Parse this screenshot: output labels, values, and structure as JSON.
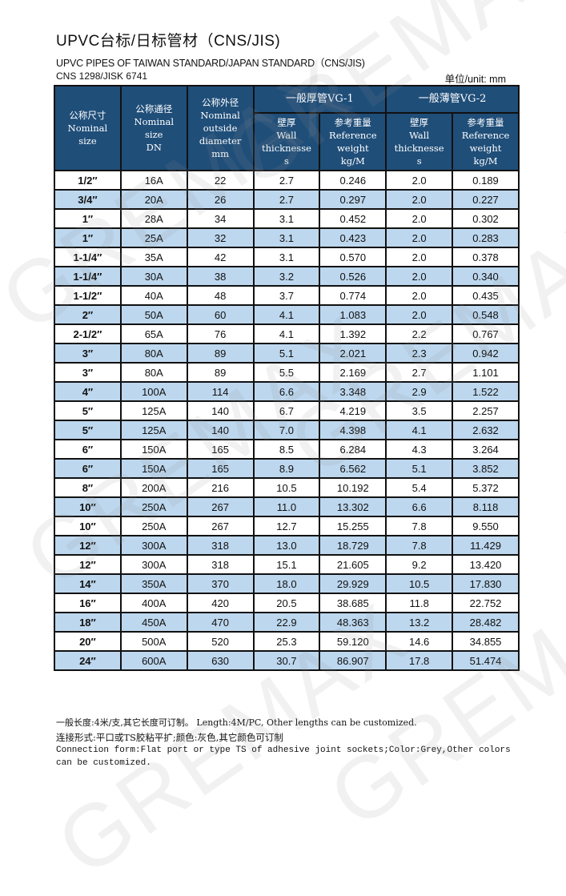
{
  "header": {
    "title": "UPVC台标/日标管材（CNS/JIS)",
    "subtitle": "UPVC PIPES OF TAIWAN STANDARD/JAPAN STANDARD（CNS/JIS)",
    "standard": "CNS 1298/JISK 6741",
    "unit": "单位/unit: mm"
  },
  "watermark": "GREMAX",
  "table": {
    "columns": {
      "nominal_size": "公称尺寸\nNominal\nsize",
      "nominal_dn": "公称通径\nNominal\nsize\nDN",
      "outside_diameter": "公称外径\nNominal\noutside\ndiameter\nmm",
      "vg1": "一般厚管VG-1",
      "vg2": "一般薄管VG-2",
      "wall": "壁厚\nWall\nthicknesse\ns",
      "weight": "参考重量\nReference\nweight\nkg/M"
    },
    "rows": [
      [
        "1/2″",
        "16A",
        "22",
        "2.7",
        "0.246",
        "2.0",
        "0.189"
      ],
      [
        "3/4″",
        "20A",
        "26",
        "2.7",
        "0.297",
        "2.0",
        "0.227"
      ],
      [
        "1″",
        "28A",
        "34",
        "3.1",
        "0.452",
        "2.0",
        "0.302"
      ],
      [
        "1″",
        "25A",
        "32",
        "3.1",
        "0.423",
        "2.0",
        "0.283"
      ],
      [
        "1-1/4″",
        "35A",
        "42",
        "3.1",
        "0.570",
        "2.0",
        "0.378"
      ],
      [
        "1-1/4″",
        "30A",
        "38",
        "3.2",
        "0.526",
        "2.0",
        "0.340"
      ],
      [
        "1-1/2″",
        "40A",
        "48",
        "3.7",
        "0.774",
        "2.0",
        "0.435"
      ],
      [
        "2″",
        "50A",
        "60",
        "4.1",
        "1.083",
        "2.0",
        "0.548"
      ],
      [
        "2-1/2″",
        "65A",
        "76",
        "4.1",
        "1.392",
        "2.2",
        "0.767"
      ],
      [
        "3″",
        "80A",
        "89",
        "5.1",
        "2.021",
        "2.3",
        "0.942"
      ],
      [
        "3″",
        "80A",
        "89",
        "5.5",
        "2.169",
        "2.7",
        "1.101"
      ],
      [
        "4″",
        "100A",
        "114",
        "6.6",
        "3.348",
        "2.9",
        "1.522"
      ],
      [
        "5″",
        "125A",
        "140",
        "6.7",
        "4.219",
        "3.5",
        "2.257"
      ],
      [
        "5″",
        "125A",
        "140",
        "7.0",
        "4.398",
        "4.1",
        "2.632"
      ],
      [
        "6″",
        "150A",
        "165",
        "8.5",
        "6.284",
        "4.3",
        "3.264"
      ],
      [
        "6″",
        "150A",
        "165",
        "8.9",
        "6.562",
        "5.1",
        "3.852"
      ],
      [
        "8″",
        "200A",
        "216",
        "10.5",
        "10.192",
        "5.4",
        "5.372"
      ],
      [
        "10″",
        "250A",
        "267",
        "11.0",
        "13.302",
        "6.6",
        "8.118"
      ],
      [
        "10″",
        "250A",
        "267",
        "12.7",
        "15.255",
        "7.8",
        "9.550"
      ],
      [
        "12″",
        "300A",
        "318",
        "13.0",
        "18.729",
        "7.8",
        "11.429"
      ],
      [
        "12″",
        "300A",
        "318",
        "15.1",
        "21.605",
        "9.2",
        "13.420"
      ],
      [
        "14″",
        "350A",
        "370",
        "18.0",
        "29.929",
        "10.5",
        "17.830"
      ],
      [
        "16″",
        "400A",
        "420",
        "20.5",
        "38.685",
        "11.8",
        "22.752"
      ],
      [
        "18″",
        "450A",
        "470",
        "22.9",
        "48.363",
        "13.2",
        "28.482"
      ],
      [
        "20″",
        "500A",
        "520",
        "25.3",
        "59.120",
        "14.6",
        "34.855"
      ],
      [
        "24″",
        "600A",
        "630",
        "30.7",
        "86.907",
        "17.8",
        "51.474"
      ]
    ]
  },
  "notes": {
    "line1": "一般长度:4米/支,其它长度可订制。    Length:4M/PC, Other lengths can be customized.",
    "line2": "连接形式:平口或TS胶粘平扩;颜色:灰色,其它颜色可订制",
    "line3": "Connection form:Flat port or type TS of adhesive joint sockets;Color:Grey,Other colors",
    "line4": "can be customized."
  },
  "colors": {
    "header_bg": "#1f4e79",
    "alt_row_bg": "#bdd7ee"
  }
}
